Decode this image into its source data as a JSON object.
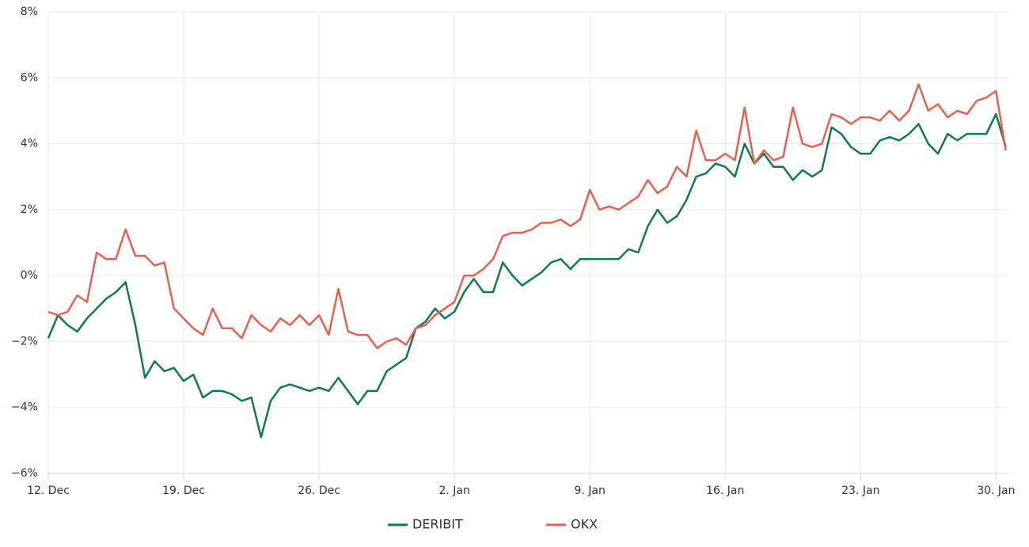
{
  "chart_data": {
    "type": "line",
    "x": [
      0,
      0.5,
      1,
      1.5,
      2,
      2.5,
      3,
      3.5,
      4,
      4.5,
      5,
      5.5,
      6,
      6.5,
      7,
      7.5,
      8,
      8.5,
      9,
      9.5,
      10,
      10.5,
      11,
      11.5,
      12,
      12.5,
      13,
      13.5,
      14,
      14.5,
      15,
      15.5,
      16,
      16.5,
      17,
      17.5,
      18,
      18.5,
      19,
      19.5,
      20,
      20.5,
      21,
      21.5,
      22,
      22.5,
      23,
      23.5,
      24,
      24.5,
      25,
      25.5,
      26,
      26.5,
      27,
      27.5,
      28,
      28.5,
      29,
      29.5,
      30,
      30.5,
      31,
      31.5,
      32,
      32.5,
      33,
      33.5,
      34,
      34.5,
      35,
      35.5,
      36,
      36.5,
      37,
      37.5,
      38,
      38.5,
      39,
      39.5,
      40,
      40.5,
      41,
      41.5,
      42,
      42.5,
      43,
      43.5,
      44,
      44.5,
      45,
      45.5,
      46,
      46.5,
      47,
      47.5,
      48,
      48.5,
      49,
      49.5
    ],
    "series": [
      {
        "name": "DERIBIT",
        "color": "#0e7a50",
        "values": [
          -1.9,
          -1.2,
          -1.5,
          -1.7,
          -1.3,
          -1.0,
          -0.7,
          -0.5,
          -0.2,
          -1.5,
          -3.1,
          -2.6,
          -2.9,
          -2.8,
          -3.2,
          -3.0,
          -3.7,
          -3.5,
          -3.5,
          -3.6,
          -3.8,
          -3.7,
          -4.9,
          -3.8,
          -3.4,
          -3.3,
          -3.4,
          -3.5,
          -3.4,
          -3.5,
          -3.1,
          -3.5,
          -3.9,
          -3.5,
          -3.5,
          -2.9,
          -2.7,
          -2.5,
          -1.6,
          -1.4,
          -1.0,
          -1.3,
          -1.1,
          -0.5,
          -0.1,
          -0.5,
          -0.5,
          0.4,
          0.0,
          -0.3,
          -0.1,
          0.1,
          0.4,
          0.5,
          0.2,
          0.5,
          0.5,
          0.5,
          0.5,
          0.5,
          0.8,
          0.7,
          1.5,
          2.0,
          1.6,
          1.8,
          2.3,
          3.0,
          3.1,
          3.4,
          3.3,
          3.0,
          4.0,
          3.4,
          3.7,
          3.3,
          3.3,
          2.9,
          3.2,
          3.0,
          3.2,
          4.5,
          4.3,
          3.9,
          3.7,
          3.7,
          4.1,
          4.2,
          4.1,
          4.3,
          4.6,
          4.0,
          3.7,
          4.3,
          4.1,
          4.3,
          4.3,
          4.3,
          4.9,
          3.9
        ]
      },
      {
        "name": "OKX",
        "color": "#e8604c",
        "values": [
          -1.1,
          -1.2,
          -1.1,
          -0.6,
          -0.8,
          0.7,
          0.5,
          0.5,
          1.4,
          0.6,
          0.6,
          0.3,
          0.4,
          -1.0,
          -1.3,
          -1.6,
          -1.8,
          -1.0,
          -1.6,
          -1.6,
          -1.9,
          -1.2,
          -1.5,
          -1.7,
          -1.3,
          -1.5,
          -1.2,
          -1.5,
          -1.2,
          -1.8,
          -0.4,
          -1.7,
          -1.8,
          -1.8,
          -2.2,
          -2.0,
          -1.9,
          -2.1,
          -1.6,
          -1.5,
          -1.2,
          -1.0,
          -0.8,
          0.0,
          0.0,
          0.2,
          0.5,
          1.2,
          1.3,
          1.3,
          1.4,
          1.6,
          1.6,
          1.7,
          1.5,
          1.7,
          2.6,
          2.0,
          2.1,
          2.0,
          2.2,
          2.4,
          2.9,
          2.5,
          2.7,
          3.3,
          3.0,
          4.4,
          3.5,
          3.5,
          3.7,
          3.5,
          5.1,
          3.4,
          3.8,
          3.5,
          3.6,
          5.1,
          4.0,
          3.9,
          4.0,
          4.9,
          4.8,
          4.6,
          4.8,
          4.8,
          4.7,
          5.0,
          4.7,
          5.0,
          5.8,
          5.0,
          5.2,
          4.8,
          5.0,
          4.9,
          5.3,
          5.4,
          5.6,
          3.8
        ]
      }
    ],
    "xlim": [
      0,
      49.6
    ],
    "xticks": [
      {
        "value": 0,
        "label": "12. Dec"
      },
      {
        "value": 7,
        "label": "19. Dec"
      },
      {
        "value": 14,
        "label": "26. Dec"
      },
      {
        "value": 21,
        "label": "2. Jan"
      },
      {
        "value": 28,
        "label": "9. Jan"
      },
      {
        "value": 35,
        "label": "16. Jan"
      },
      {
        "value": 42,
        "label": "23. Jan"
      },
      {
        "value": 49,
        "label": "30. Jan"
      }
    ],
    "ylim": [
      -6,
      8
    ],
    "yticks": [
      {
        "value": -6,
        "label": "−6%"
      },
      {
        "value": -4,
        "label": "−4%"
      },
      {
        "value": -2,
        "label": "−2%"
      },
      {
        "value": 0,
        "label": "0%"
      },
      {
        "value": 2,
        "label": "2%"
      },
      {
        "value": 4,
        "label": "4%"
      },
      {
        "value": 6,
        "label": "6%"
      },
      {
        "value": 8,
        "label": "8%"
      }
    ],
    "grid": true
  }
}
